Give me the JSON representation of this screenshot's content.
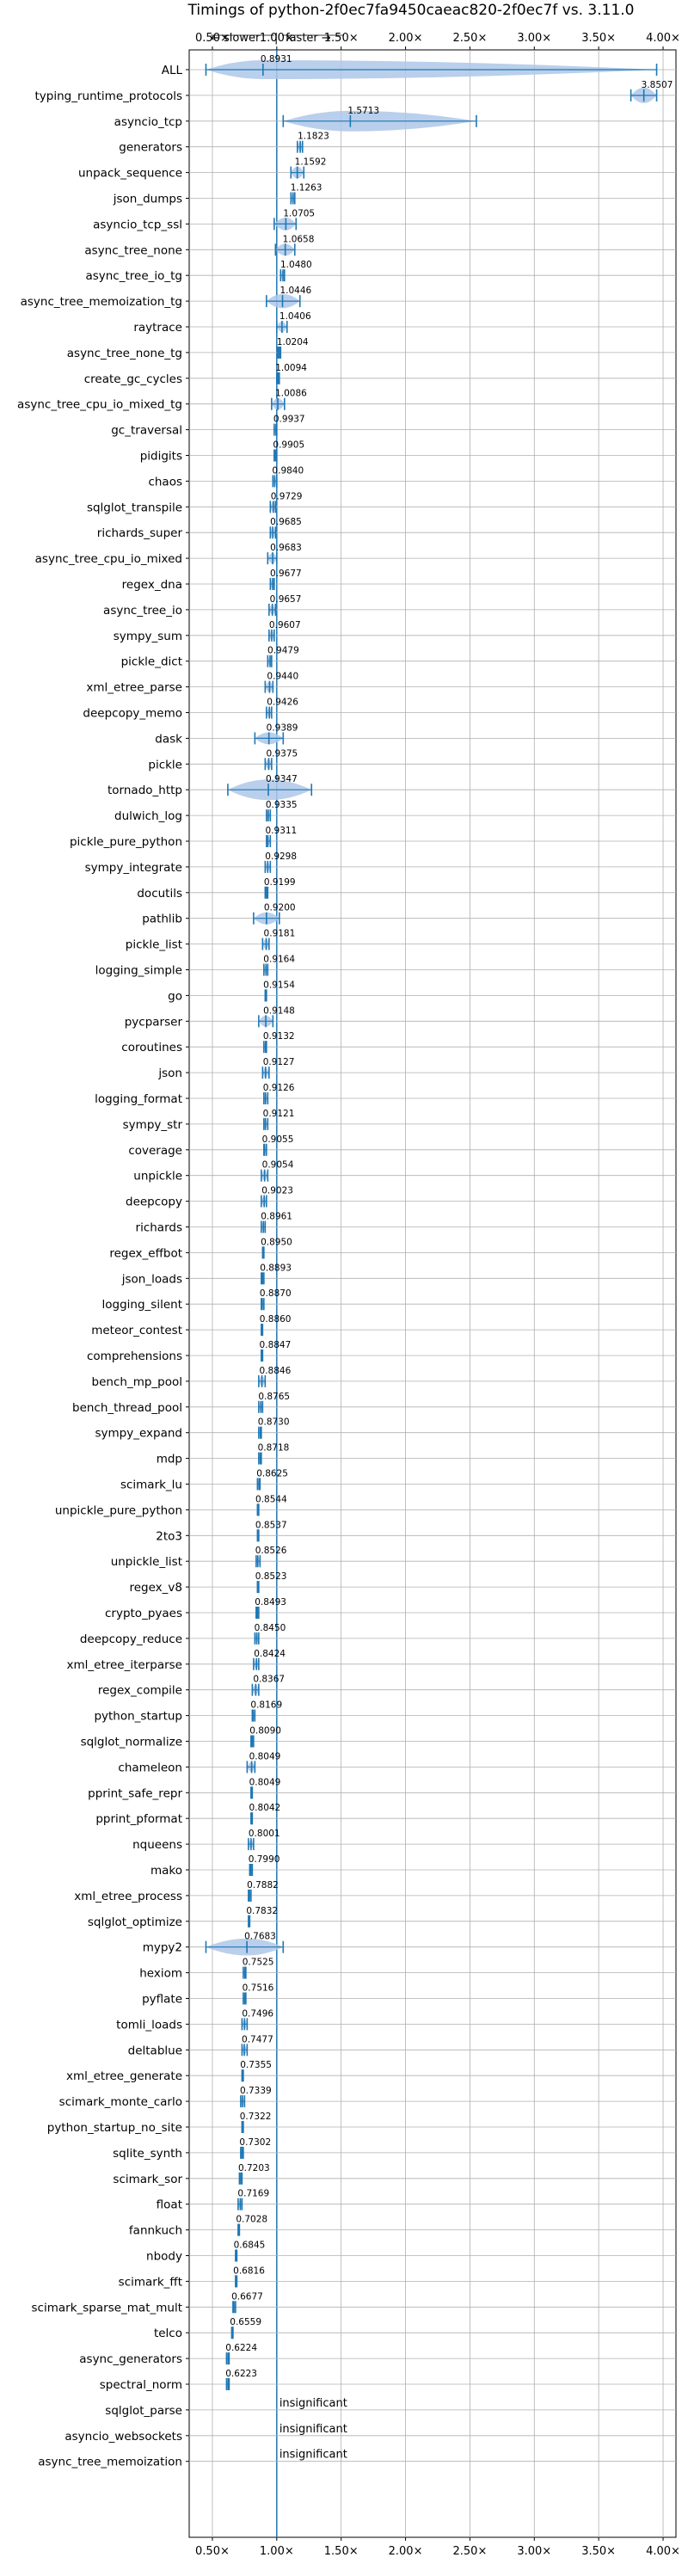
{
  "chart_data": {
    "type": "violin",
    "title": "Timings of python-2f0ec7fa9450caeac820-2f0ec7f vs. 3.11.0",
    "direction_labels": {
      "slower": "← slower",
      "faster": "faster →",
      "separator": "|"
    },
    "x_ticks": [
      "0.50×",
      "1.00×",
      "1.50×",
      "2.00×",
      "2.50×",
      "3.00×",
      "3.50×",
      "4.00×"
    ],
    "x_tick_values": [
      0.5,
      1.0,
      1.5,
      2.0,
      2.5,
      3.0,
      3.5,
      4.0
    ],
    "xlim": [
      0.32,
      4.1
    ],
    "reference_line": 1.0,
    "grid": true,
    "insignificant_label": "insignificant",
    "benchmarks": [
      {
        "name": "ALL",
        "value": 0.8931,
        "label": "0.8931",
        "min": 0.45,
        "max": 3.95,
        "spread": 0.15
      },
      {
        "name": "typing_runtime_protocols",
        "value": 3.8507,
        "label": "3.8507",
        "min": 3.75,
        "max": 3.95,
        "spread": 0.1
      },
      {
        "name": "asyncio_tcp",
        "value": 1.5713,
        "label": "1.5713",
        "min": 1.05,
        "max": 2.55,
        "spread": 0.4
      },
      {
        "name": "generators",
        "value": 1.1823,
        "label": "1.1823",
        "min": 1.16,
        "max": 1.2,
        "spread": 0.02
      },
      {
        "name": "unpack_sequence",
        "value": 1.1592,
        "label": "1.1592",
        "min": 1.11,
        "max": 1.21,
        "spread": 0.05
      },
      {
        "name": "json_dumps",
        "value": 1.1263,
        "label": "1.1263",
        "min": 1.11,
        "max": 1.14,
        "spread": 0.02
      },
      {
        "name": "asyncio_tcp_ssl",
        "value": 1.0705,
        "label": "1.0705",
        "min": 0.98,
        "max": 1.15,
        "spread": 0.06
      },
      {
        "name": "async_tree_none",
        "value": 1.0658,
        "label": "1.0658",
        "min": 0.99,
        "max": 1.14,
        "spread": 0.05
      },
      {
        "name": "async_tree_io_tg",
        "value": 1.048,
        "label": "1.0480",
        "min": 1.03,
        "max": 1.06,
        "spread": 0.02
      },
      {
        "name": "async_tree_memoization_tg",
        "value": 1.0446,
        "label": "1.0446",
        "min": 0.92,
        "max": 1.18,
        "spread": 0.08
      },
      {
        "name": "raytrace",
        "value": 1.0406,
        "label": "1.0406",
        "min": 1.0,
        "max": 1.08,
        "spread": 0.03
      },
      {
        "name": "async_tree_none_tg",
        "value": 1.0204,
        "label": "1.0204",
        "min": 1.01,
        "max": 1.03,
        "spread": 0.01
      },
      {
        "name": "create_gc_cycles",
        "value": 1.0094,
        "label": "1.0094",
        "min": 1.0,
        "max": 1.02,
        "spread": 0.01
      },
      {
        "name": "async_tree_cpu_io_mixed_tg",
        "value": 1.0086,
        "label": "1.0086",
        "min": 0.96,
        "max": 1.06,
        "spread": 0.04
      },
      {
        "name": "gc_traversal",
        "value": 0.9937,
        "label": "0.9937",
        "min": 0.98,
        "max": 1.0,
        "spread": 0.01
      },
      {
        "name": "pidigits",
        "value": 0.9905,
        "label": "0.9905",
        "min": 0.98,
        "max": 1.0,
        "spread": 0.01
      },
      {
        "name": "chaos",
        "value": 0.984,
        "label": "0.9840",
        "min": 0.97,
        "max": 1.0,
        "spread": 0.01
      },
      {
        "name": "sqlglot_transpile",
        "value": 0.9729,
        "label": "0.9729",
        "min": 0.95,
        "max": 0.99,
        "spread": 0.02
      },
      {
        "name": "richards_super",
        "value": 0.9685,
        "label": "0.9685",
        "min": 0.95,
        "max": 0.99,
        "spread": 0.02
      },
      {
        "name": "async_tree_cpu_io_mixed",
        "value": 0.9683,
        "label": "0.9683",
        "min": 0.93,
        "max": 1.0,
        "spread": 0.03
      },
      {
        "name": "regex_dna",
        "value": 0.9677,
        "label": "0.9677",
        "min": 0.95,
        "max": 0.98,
        "spread": 0.02
      },
      {
        "name": "async_tree_io",
        "value": 0.9657,
        "label": "0.9657",
        "min": 0.94,
        "max": 0.99,
        "spread": 0.02
      },
      {
        "name": "sympy_sum",
        "value": 0.9607,
        "label": "0.9607",
        "min": 0.94,
        "max": 0.98,
        "spread": 0.02
      },
      {
        "name": "pickle_dict",
        "value": 0.9479,
        "label": "0.9479",
        "min": 0.93,
        "max": 0.96,
        "spread": 0.02
      },
      {
        "name": "xml_etree_parse",
        "value": 0.944,
        "label": "0.9440",
        "min": 0.91,
        "max": 0.97,
        "spread": 0.03
      },
      {
        "name": "deepcopy_memo",
        "value": 0.9426,
        "label": "0.9426",
        "min": 0.92,
        "max": 0.96,
        "spread": 0.02
      },
      {
        "name": "dask",
        "value": 0.9389,
        "label": "0.9389",
        "min": 0.83,
        "max": 1.05,
        "spread": 0.05
      },
      {
        "name": "pickle",
        "value": 0.9375,
        "label": "0.9375",
        "min": 0.91,
        "max": 0.96,
        "spread": 0.02
      },
      {
        "name": "tornado_http",
        "value": 0.9347,
        "label": "0.9347",
        "min": 0.62,
        "max": 1.27,
        "spread": 0.2
      },
      {
        "name": "dulwich_log",
        "value": 0.9335,
        "label": "0.9335",
        "min": 0.92,
        "max": 0.95,
        "spread": 0.02
      },
      {
        "name": "pickle_pure_python",
        "value": 0.9311,
        "label": "0.9311",
        "min": 0.92,
        "max": 0.95,
        "spread": 0.01
      },
      {
        "name": "sympy_integrate",
        "value": 0.9298,
        "label": "0.9298",
        "min": 0.91,
        "max": 0.95,
        "spread": 0.01
      },
      {
        "name": "docutils",
        "value": 0.9199,
        "label": "0.9199",
        "min": 0.91,
        "max": 0.93,
        "spread": 0.01
      },
      {
        "name": "pathlib",
        "value": 0.92,
        "label": "0.9200",
        "min": 0.82,
        "max": 1.02,
        "spread": 0.05
      },
      {
        "name": "pickle_list",
        "value": 0.9181,
        "label": "0.9181",
        "min": 0.89,
        "max": 0.94,
        "spread": 0.02
      },
      {
        "name": "logging_simple",
        "value": 0.9164,
        "label": "0.9164",
        "min": 0.9,
        "max": 0.93,
        "spread": 0.01
      },
      {
        "name": "go",
        "value": 0.9154,
        "label": "0.9154",
        "min": 0.91,
        "max": 0.92,
        "spread": 0.01
      },
      {
        "name": "pycparser",
        "value": 0.9148,
        "label": "0.9148",
        "min": 0.86,
        "max": 0.97,
        "spread": 0.04
      },
      {
        "name": "coroutines",
        "value": 0.9132,
        "label": "0.9132",
        "min": 0.9,
        "max": 0.92,
        "spread": 0.01
      },
      {
        "name": "json",
        "value": 0.9127,
        "label": "0.9127",
        "min": 0.89,
        "max": 0.94,
        "spread": 0.02
      },
      {
        "name": "logging_format",
        "value": 0.9126,
        "label": "0.9126",
        "min": 0.9,
        "max": 0.93,
        "spread": 0.01
      },
      {
        "name": "sympy_str",
        "value": 0.9121,
        "label": "0.9121",
        "min": 0.9,
        "max": 0.93,
        "spread": 0.01
      },
      {
        "name": "coverage",
        "value": 0.9055,
        "label": "0.9055",
        "min": 0.9,
        "max": 0.92,
        "spread": 0.01
      },
      {
        "name": "unpickle",
        "value": 0.9054,
        "label": "0.9054",
        "min": 0.88,
        "max": 0.93,
        "spread": 0.02
      },
      {
        "name": "deepcopy",
        "value": 0.9023,
        "label": "0.9023",
        "min": 0.88,
        "max": 0.92,
        "spread": 0.02
      },
      {
        "name": "richards",
        "value": 0.8961,
        "label": "0.8961",
        "min": 0.88,
        "max": 0.91,
        "spread": 0.01
      },
      {
        "name": "regex_effbot",
        "value": 0.895,
        "label": "0.8950",
        "min": 0.89,
        "max": 0.9,
        "spread": 0.01
      },
      {
        "name": "json_loads",
        "value": 0.8893,
        "label": "0.8893",
        "min": 0.88,
        "max": 0.9,
        "spread": 0.01
      },
      {
        "name": "logging_silent",
        "value": 0.887,
        "label": "0.8870",
        "min": 0.88,
        "max": 0.9,
        "spread": 0.01
      },
      {
        "name": "meteor_contest",
        "value": 0.886,
        "label": "0.8860",
        "min": 0.88,
        "max": 0.89,
        "spread": 0.01
      },
      {
        "name": "comprehensions",
        "value": 0.8847,
        "label": "0.8847",
        "min": 0.88,
        "max": 0.89,
        "spread": 0.01
      },
      {
        "name": "bench_mp_pool",
        "value": 0.8846,
        "label": "0.8846",
        "min": 0.86,
        "max": 0.91,
        "spread": 0.02
      },
      {
        "name": "bench_thread_pool",
        "value": 0.8765,
        "label": "0.8765",
        "min": 0.86,
        "max": 0.89,
        "spread": 0.01
      },
      {
        "name": "sympy_expand",
        "value": 0.873,
        "label": "0.8730",
        "min": 0.86,
        "max": 0.88,
        "spread": 0.01
      },
      {
        "name": "mdp",
        "value": 0.8718,
        "label": "0.8718",
        "min": 0.86,
        "max": 0.88,
        "spread": 0.01
      },
      {
        "name": "scimark_lu",
        "value": 0.8625,
        "label": "0.8625",
        "min": 0.85,
        "max": 0.87,
        "spread": 0.01
      },
      {
        "name": "unpickle_pure_python",
        "value": 0.8544,
        "label": "0.8544",
        "min": 0.85,
        "max": 0.86,
        "spread": 0.01
      },
      {
        "name": "2to3",
        "value": 0.8537,
        "label": "0.8537",
        "min": 0.85,
        "max": 0.86,
        "spread": 0.01
      },
      {
        "name": "unpickle_list",
        "value": 0.8526,
        "label": "0.8526",
        "min": 0.84,
        "max": 0.87,
        "spread": 0.01
      },
      {
        "name": "regex_v8",
        "value": 0.8523,
        "label": "0.8523",
        "min": 0.85,
        "max": 0.86,
        "spread": 0.01
      },
      {
        "name": "crypto_pyaes",
        "value": 0.8493,
        "label": "0.8493",
        "min": 0.84,
        "max": 0.86,
        "spread": 0.01
      },
      {
        "name": "deepcopy_reduce",
        "value": 0.845,
        "label": "0.8450",
        "min": 0.83,
        "max": 0.86,
        "spread": 0.01
      },
      {
        "name": "xml_etree_iterparse",
        "value": 0.8424,
        "label": "0.8424",
        "min": 0.82,
        "max": 0.86,
        "spread": 0.02
      },
      {
        "name": "regex_compile",
        "value": 0.8367,
        "label": "0.8367",
        "min": 0.81,
        "max": 0.86,
        "spread": 0.02
      },
      {
        "name": "python_startup",
        "value": 0.8169,
        "label": "0.8169",
        "min": 0.81,
        "max": 0.83,
        "spread": 0.01
      },
      {
        "name": "sqlglot_normalize",
        "value": 0.809,
        "label": "0.8090",
        "min": 0.8,
        "max": 0.82,
        "spread": 0.01
      },
      {
        "name": "chameleon",
        "value": 0.8049,
        "label": "0.8049",
        "min": 0.77,
        "max": 0.83,
        "spread": 0.02
      },
      {
        "name": "pprint_safe_repr",
        "value": 0.8049,
        "label": "0.8049",
        "min": 0.8,
        "max": 0.81,
        "spread": 0.01
      },
      {
        "name": "pprint_pformat",
        "value": 0.8042,
        "label": "0.8042",
        "min": 0.8,
        "max": 0.81,
        "spread": 0.01
      },
      {
        "name": "nqueens",
        "value": 0.8001,
        "label": "0.8001",
        "min": 0.78,
        "max": 0.82,
        "spread": 0.01
      },
      {
        "name": "mako",
        "value": 0.799,
        "label": "0.7990",
        "min": 0.79,
        "max": 0.81,
        "spread": 0.01
      },
      {
        "name": "xml_etree_process",
        "value": 0.7882,
        "label": "0.7882",
        "min": 0.78,
        "max": 0.8,
        "spread": 0.01
      },
      {
        "name": "sqlglot_optimize",
        "value": 0.7832,
        "label": "0.7832",
        "min": 0.78,
        "max": 0.79,
        "spread": 0.01
      },
      {
        "name": "mypy2",
        "value": 0.7683,
        "label": "0.7683",
        "min": 0.45,
        "max": 1.05,
        "spread": 0.12
      },
      {
        "name": "hexiom",
        "value": 0.7525,
        "label": "0.7525",
        "min": 0.74,
        "max": 0.76,
        "spread": 0.01
      },
      {
        "name": "pyflate",
        "value": 0.7516,
        "label": "0.7516",
        "min": 0.74,
        "max": 0.76,
        "spread": 0.01
      },
      {
        "name": "tomli_loads",
        "value": 0.7496,
        "label": "0.7496",
        "min": 0.73,
        "max": 0.77,
        "spread": 0.01
      },
      {
        "name": "deltablue",
        "value": 0.7477,
        "label": "0.7477",
        "min": 0.73,
        "max": 0.77,
        "spread": 0.02
      },
      {
        "name": "xml_etree_generate",
        "value": 0.7355,
        "label": "0.7355",
        "min": 0.73,
        "max": 0.74,
        "spread": 0.01
      },
      {
        "name": "scimark_monte_carlo",
        "value": 0.7339,
        "label": "0.7339",
        "min": 0.72,
        "max": 0.75,
        "spread": 0.01
      },
      {
        "name": "python_startup_no_site",
        "value": 0.7322,
        "label": "0.7322",
        "min": 0.73,
        "max": 0.74,
        "spread": 0.01
      },
      {
        "name": "sqlite_synth",
        "value": 0.7302,
        "label": "0.7302",
        "min": 0.72,
        "max": 0.74,
        "spread": 0.01
      },
      {
        "name": "scimark_sor",
        "value": 0.7203,
        "label": "0.7203",
        "min": 0.71,
        "max": 0.73,
        "spread": 0.01
      },
      {
        "name": "float",
        "value": 0.7169,
        "label": "0.7169",
        "min": 0.7,
        "max": 0.73,
        "spread": 0.01
      },
      {
        "name": "fannkuch",
        "value": 0.7028,
        "label": "0.7028",
        "min": 0.7,
        "max": 0.71,
        "spread": 0.01
      },
      {
        "name": "nbody",
        "value": 0.6845,
        "label": "0.6845",
        "min": 0.68,
        "max": 0.69,
        "spread": 0.01
      },
      {
        "name": "scimark_fft",
        "value": 0.6816,
        "label": "0.6816",
        "min": 0.68,
        "max": 0.69,
        "spread": 0.01
      },
      {
        "name": "scimark_sparse_mat_mult",
        "value": 0.6677,
        "label": "0.6677",
        "min": 0.66,
        "max": 0.68,
        "spread": 0.01
      },
      {
        "name": "telco",
        "value": 0.6559,
        "label": "0.6559",
        "min": 0.65,
        "max": 0.66,
        "spread": 0.01
      },
      {
        "name": "async_generators",
        "value": 0.6224,
        "label": "0.6224",
        "min": 0.61,
        "max": 0.63,
        "spread": 0.01
      },
      {
        "name": "spectral_norm",
        "value": 0.6223,
        "label": "0.6223",
        "min": 0.61,
        "max": 0.63,
        "spread": 0.01
      },
      {
        "name": "sqlglot_parse",
        "value": null,
        "label": "",
        "insignificant": true
      },
      {
        "name": "asyncio_websockets",
        "value": null,
        "label": "",
        "insignificant": true
      },
      {
        "name": "async_tree_memoization",
        "value": null,
        "label": "",
        "insignificant": true
      }
    ],
    "colors": {
      "violin": "#aec7e8",
      "line": "#1f77b4",
      "grid": "#b0b0b0",
      "axis": "#000000"
    }
  }
}
